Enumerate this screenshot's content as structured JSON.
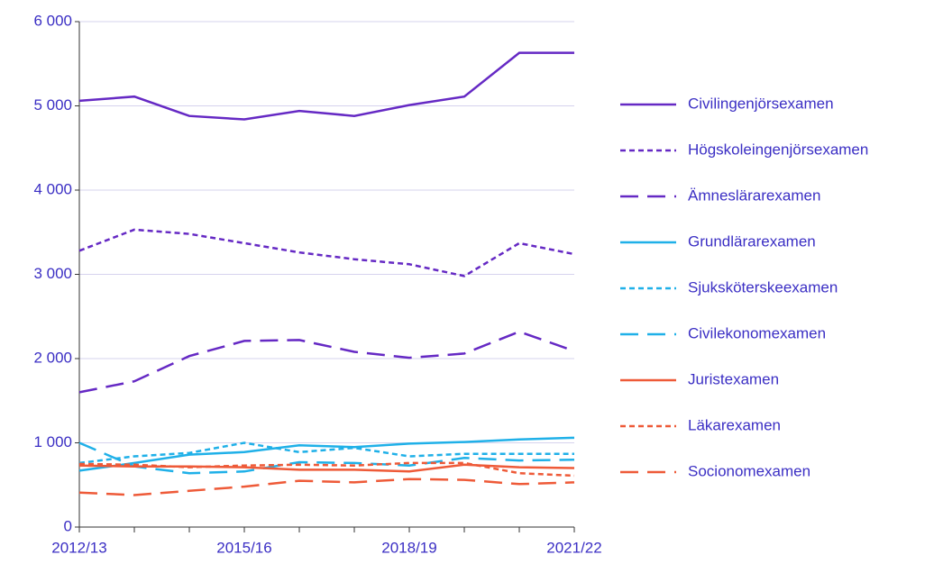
{
  "chart_data": {
    "type": "line",
    "categories": [
      "2012/13",
      null,
      null,
      "2015/16",
      null,
      null,
      "2018/19",
      null,
      null,
      "2021/22"
    ],
    "ylim": [
      0,
      6000
    ],
    "yticks": [
      {
        "value": 0,
        "label": "0"
      },
      {
        "value": 1000,
        "label": "1 000"
      },
      {
        "value": 2000,
        "label": "2 000"
      },
      {
        "value": 3000,
        "label": "3 000"
      },
      {
        "value": 4000,
        "label": "4 000"
      },
      {
        "value": 5000,
        "label": "5 000"
      },
      {
        "value": 6000,
        "label": "6 000"
      }
    ],
    "grid": true,
    "legend": "right",
    "series": [
      {
        "name": "Civilingenjörsexamen",
        "color": "#6529c4",
        "dash": "solid",
        "values": [
          5060,
          5110,
          4880,
          4840,
          4940,
          4880,
          5010,
          5110,
          5630,
          5630
        ]
      },
      {
        "name": "Högskoleingenjörsexamen",
        "color": "#6529c4",
        "dash": "dotted",
        "values": [
          3280,
          3530,
          3480,
          3370,
          3260,
          3180,
          3120,
          2980,
          3370,
          3240
        ]
      },
      {
        "name": "Ämneslärarexamen",
        "color": "#6529c4",
        "dash": "dashed",
        "values": [
          1600,
          1730,
          2030,
          2210,
          2220,
          2080,
          2010,
          2060,
          2320,
          2090
        ]
      },
      {
        "name": "Grundlärarexamen",
        "color": "#1fb0e8",
        "dash": "solid",
        "values": [
          670,
          760,
          860,
          890,
          970,
          950,
          990,
          1010,
          1040,
          1060
        ]
      },
      {
        "name": "Sjuksköterskeexamen",
        "color": "#1fb0e8",
        "dash": "dotted",
        "values": [
          760,
          840,
          880,
          1000,
          890,
          940,
          840,
          870,
          870,
          870
        ]
      },
      {
        "name": "Civilekonomexamen",
        "color": "#1fb0e8",
        "dash": "dashed",
        "values": [
          1000,
          720,
          640,
          660,
          770,
          760,
          730,
          820,
          790,
          800
        ]
      },
      {
        "name": "Juristexamen",
        "color": "#ee5a38",
        "dash": "solid",
        "values": [
          730,
          720,
          720,
          710,
          680,
          680,
          660,
          740,
          710,
          700
        ]
      },
      {
        "name": "Läkarexamen",
        "color": "#ee5a38",
        "dash": "dotted",
        "values": [
          750,
          740,
          710,
          730,
          740,
          730,
          760,
          760,
          640,
          610
        ]
      },
      {
        "name": "Socionomexamen",
        "color": "#ee5a38",
        "dash": "dashed",
        "values": [
          410,
          380,
          430,
          480,
          550,
          530,
          570,
          560,
          510,
          530
        ]
      }
    ]
  }
}
